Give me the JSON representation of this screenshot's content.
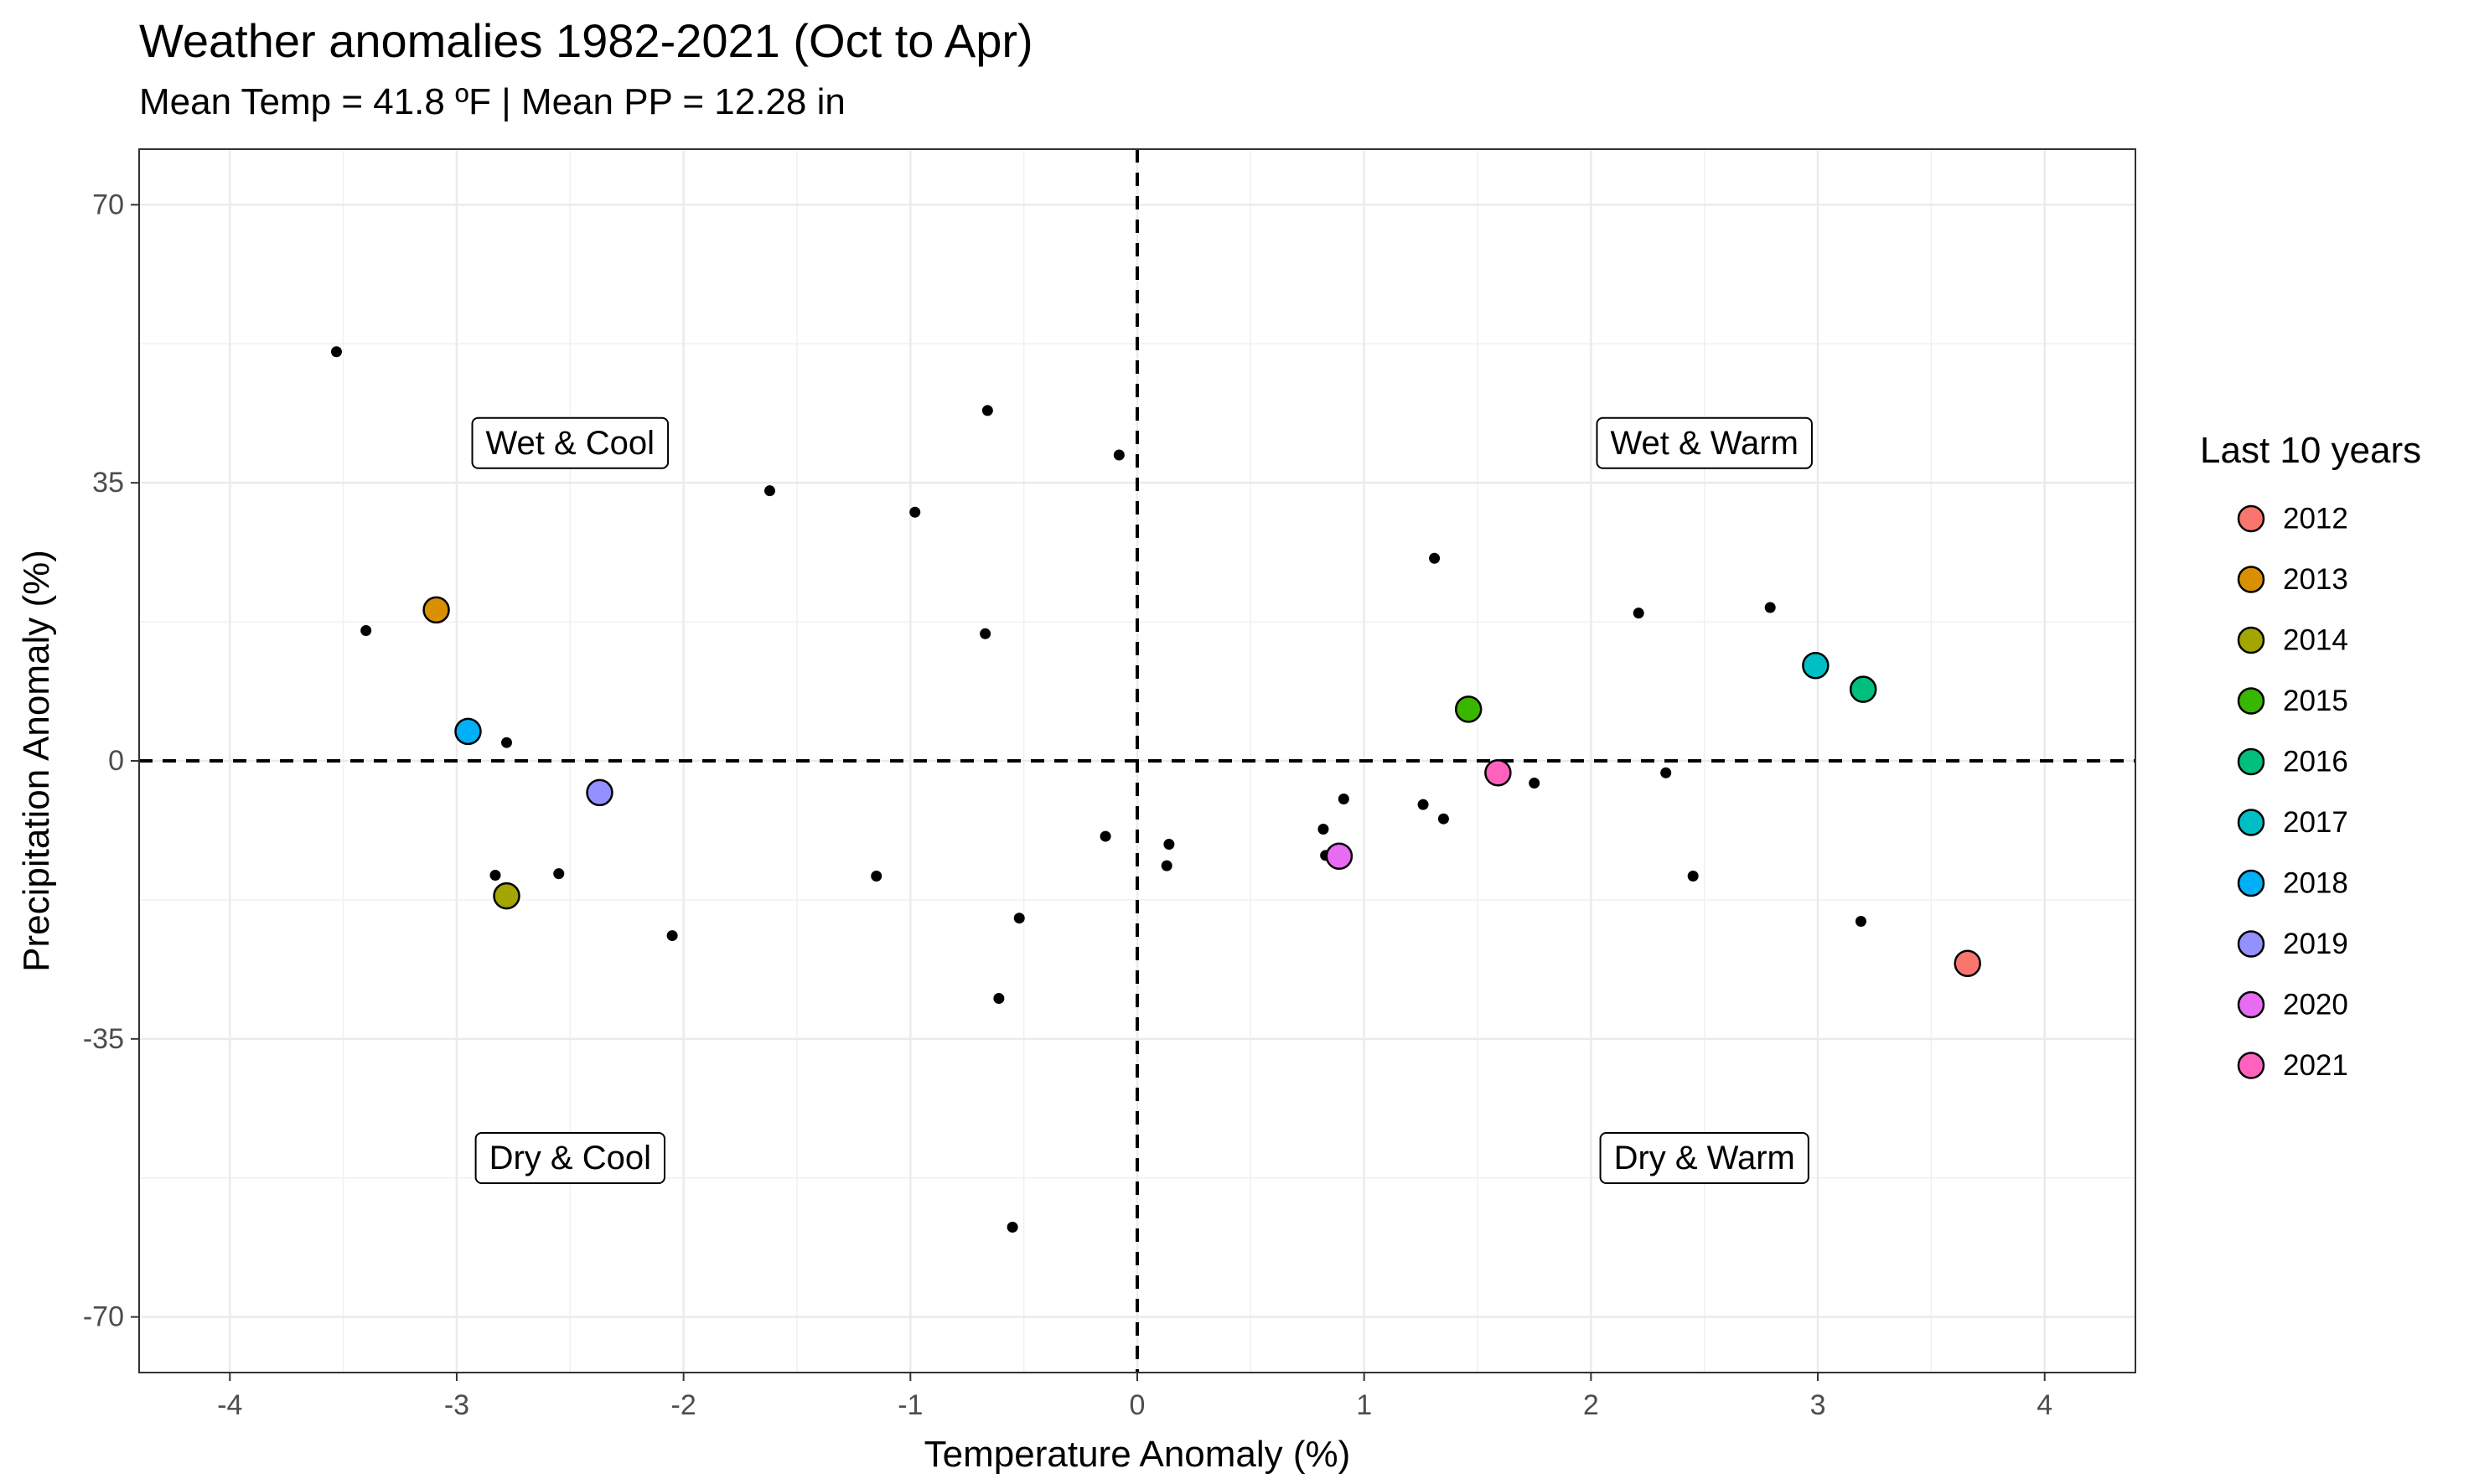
{
  "chart_data": {
    "type": "scatter",
    "title": "Weather anomalies 1982-2021 (Oct to Apr)",
    "subtitle": "Mean Temp = 41.8 ºF | Mean PP = 12.28 in",
    "xlabel": "Temperature Anomaly (%)",
    "ylabel": "Precipitation Anomaly (%)",
    "xlim": [
      -4.4,
      4.4
    ],
    "ylim": [
      -77,
      77
    ],
    "x_ticks": [
      -4,
      -3,
      -2,
      -1,
      0,
      1,
      2,
      3,
      4
    ],
    "y_ticks": [
      70,
      35,
      0,
      -35,
      -70
    ],
    "x_tick_labels": [
      "-4",
      "-3",
      "-2",
      "-1",
      "0",
      "1",
      "2",
      "3",
      "4"
    ],
    "y_tick_labels": [
      "70",
      "35",
      "0",
      "-35",
      "-70"
    ],
    "grid": true,
    "reference_lines": {
      "x": 0,
      "y": 0,
      "style": "dashed"
    },
    "quadrant_labels": [
      {
        "text": "Wet & Cool",
        "x": -2.5,
        "y": 40
      },
      {
        "text": "Wet & Warm",
        "x": 2.5,
        "y": 40
      },
      {
        "text": "Dry & Cool",
        "x": -2.5,
        "y": -50
      },
      {
        "text": "Dry & Warm",
        "x": 2.5,
        "y": -50
      }
    ],
    "legend": {
      "title": "Last 10 years",
      "position": "right"
    },
    "series": [
      {
        "name": "2012",
        "color": "#F8766D",
        "points": [
          {
            "x": 3.66,
            "y": -25.5
          }
        ]
      },
      {
        "name": "2013",
        "color": "#D89000",
        "points": [
          {
            "x": -3.09,
            "y": 19
          }
        ]
      },
      {
        "name": "2014",
        "color": "#A3A500",
        "points": [
          {
            "x": -2.78,
            "y": -17
          }
        ]
      },
      {
        "name": "2015",
        "color": "#39B600",
        "points": [
          {
            "x": 1.46,
            "y": 6.5
          }
        ]
      },
      {
        "name": "2016",
        "color": "#00BF7D",
        "points": [
          {
            "x": 3.2,
            "y": 9
          }
        ]
      },
      {
        "name": "2017",
        "color": "#00BFC4",
        "points": [
          {
            "x": 2.99,
            "y": 12
          }
        ]
      },
      {
        "name": "2018",
        "color": "#00B0F6",
        "points": [
          {
            "x": -2.95,
            "y": 3.7
          }
        ]
      },
      {
        "name": "2019",
        "color": "#9590FF",
        "points": [
          {
            "x": -2.37,
            "y": -4
          }
        ]
      },
      {
        "name": "2020",
        "color": "#E76BF3",
        "points": [
          {
            "x": 0.89,
            "y": -12
          }
        ]
      },
      {
        "name": "2021",
        "color": "#FF62BC",
        "points": [
          {
            "x": 1.59,
            "y": -1.5
          }
        ]
      }
    ],
    "background_points": [
      {
        "x": -3.53,
        "y": 51.5
      },
      {
        "x": -3.4,
        "y": 16.4
      },
      {
        "x": -2.78,
        "y": 2.3
      },
      {
        "x": -2.83,
        "y": -14.4
      },
      {
        "x": -2.55,
        "y": -14.2
      },
      {
        "x": -2.05,
        "y": -22
      },
      {
        "x": -1.62,
        "y": 34
      },
      {
        "x": -1.15,
        "y": -14.5
      },
      {
        "x": -0.98,
        "y": 31.3
      },
      {
        "x": -0.66,
        "y": 44.1
      },
      {
        "x": -0.67,
        "y": 16
      },
      {
        "x": -0.61,
        "y": -29.9
      },
      {
        "x": -0.52,
        "y": -19.8
      },
      {
        "x": -0.55,
        "y": -58.7
      },
      {
        "x": -0.08,
        "y": 38.5
      },
      {
        "x": -0.14,
        "y": -9.5
      },
      {
        "x": 0.14,
        "y": -10.5
      },
      {
        "x": 0.13,
        "y": -13.2
      },
      {
        "x": 0.82,
        "y": -8.6
      },
      {
        "x": 0.83,
        "y": -11.9
      },
      {
        "x": 0.91,
        "y": -4.8
      },
      {
        "x": 1.26,
        "y": -5.5
      },
      {
        "x": 1.31,
        "y": 25.5
      },
      {
        "x": 1.35,
        "y": -7.3
      },
      {
        "x": 1.75,
        "y": -2.8
      },
      {
        "x": 2.21,
        "y": 18.6
      },
      {
        "x": 2.33,
        "y": -1.5
      },
      {
        "x": 2.45,
        "y": -14.5
      },
      {
        "x": 2.79,
        "y": 19.3
      },
      {
        "x": 3.19,
        "y": -20.2
      }
    ],
    "background_point_color": "#000000"
  }
}
